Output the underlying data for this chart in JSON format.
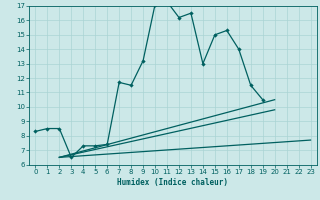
{
  "xlabel": "Humidex (Indice chaleur)",
  "background_color": "#cce8e8",
  "line_color": "#006060",
  "grid_color": "#aad4d4",
  "xlim": [
    -0.5,
    23.5
  ],
  "ylim": [
    6,
    17
  ],
  "yticks": [
    6,
    7,
    8,
    9,
    10,
    11,
    12,
    13,
    14,
    15,
    16,
    17
  ],
  "xticks": [
    0,
    1,
    2,
    3,
    4,
    5,
    6,
    7,
    8,
    9,
    10,
    11,
    12,
    13,
    14,
    15,
    16,
    17,
    18,
    19,
    20,
    21,
    22,
    23
  ],
  "main_x": [
    0,
    1,
    2,
    3,
    4,
    5,
    6,
    7,
    8,
    9,
    10,
    11,
    12,
    13,
    14,
    15,
    16,
    17,
    18,
    19
  ],
  "main_y": [
    8.3,
    8.5,
    8.5,
    6.5,
    7.3,
    7.3,
    7.4,
    11.7,
    11.5,
    13.2,
    17.1,
    17.3,
    16.2,
    16.5,
    13.0,
    15.0,
    15.3,
    14.0,
    11.5,
    10.5
  ],
  "line2_x": [
    2,
    23
  ],
  "line2_y": [
    6.5,
    7.7
  ],
  "line3_x": [
    2,
    20
  ],
  "line3_y": [
    6.5,
    10.5
  ],
  "line4_x": [
    2,
    20
  ],
  "line4_y": [
    6.5,
    9.8
  ]
}
